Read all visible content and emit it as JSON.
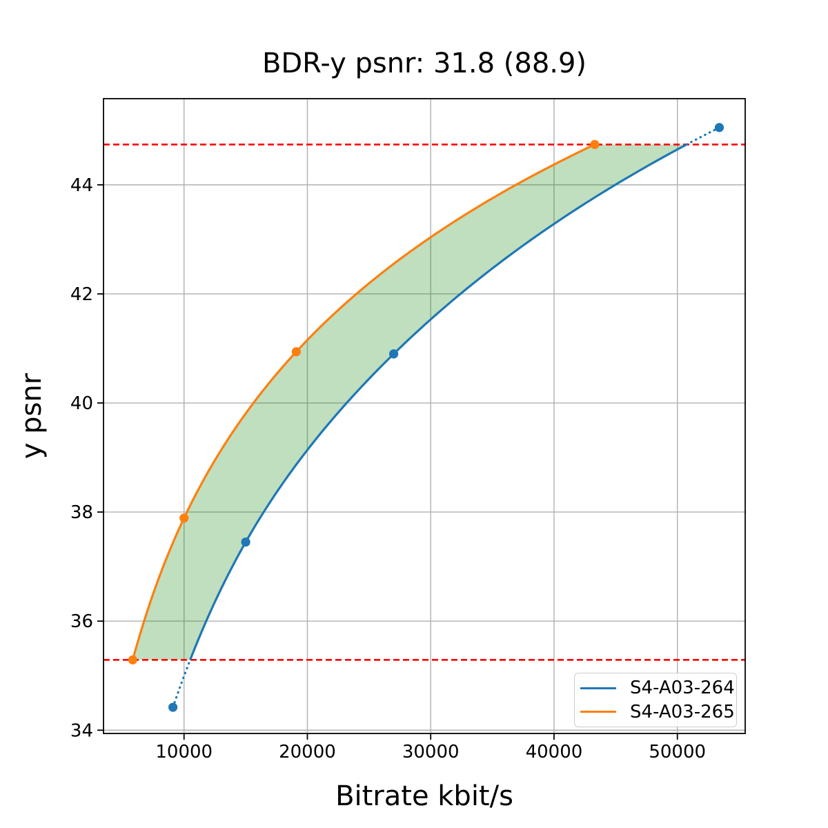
{
  "title": "BDR-y psnr: 31.8 (88.9)",
  "chart_data": {
    "type": "line",
    "title": "BDR-y psnr: 31.8 (88.9)",
    "xlabel": "Bitrate kbit/s",
    "ylabel": "y psnr",
    "xlim": [
      3470,
      55500
    ],
    "ylim": [
      33.94,
      45.58
    ],
    "xticks": [
      10000,
      20000,
      30000,
      40000,
      50000
    ],
    "yticks": [
      34,
      36,
      38,
      40,
      42,
      44
    ],
    "grid": true,
    "grid_color": "#b0b0b0",
    "legend_position": "lower right",
    "series": [
      {
        "name": "S4-A03-264",
        "color": "#1f77b4",
        "marker": "o",
        "interpolation": "pchip-log-rate",
        "points": [
          [
            9100,
            34.42
          ],
          [
            15000,
            37.45
          ],
          [
            27000,
            40.9
          ],
          [
            53400,
            45.05
          ]
        ]
      },
      {
        "name": "S4-A03-265",
        "color": "#ff7f0e",
        "marker": "o",
        "interpolation": "pchip-log-rate",
        "points": [
          [
            5840,
            35.29
          ],
          [
            10000,
            37.89
          ],
          [
            19100,
            40.94
          ],
          [
            43300,
            44.74
          ]
        ]
      }
    ],
    "bd_bounds": {
      "lower": 35.29,
      "upper": 44.74,
      "line_color": "#ff0000",
      "line_style": "dashed"
    },
    "fill_between": {
      "color": "#008000",
      "opacity": 0.25
    }
  }
}
